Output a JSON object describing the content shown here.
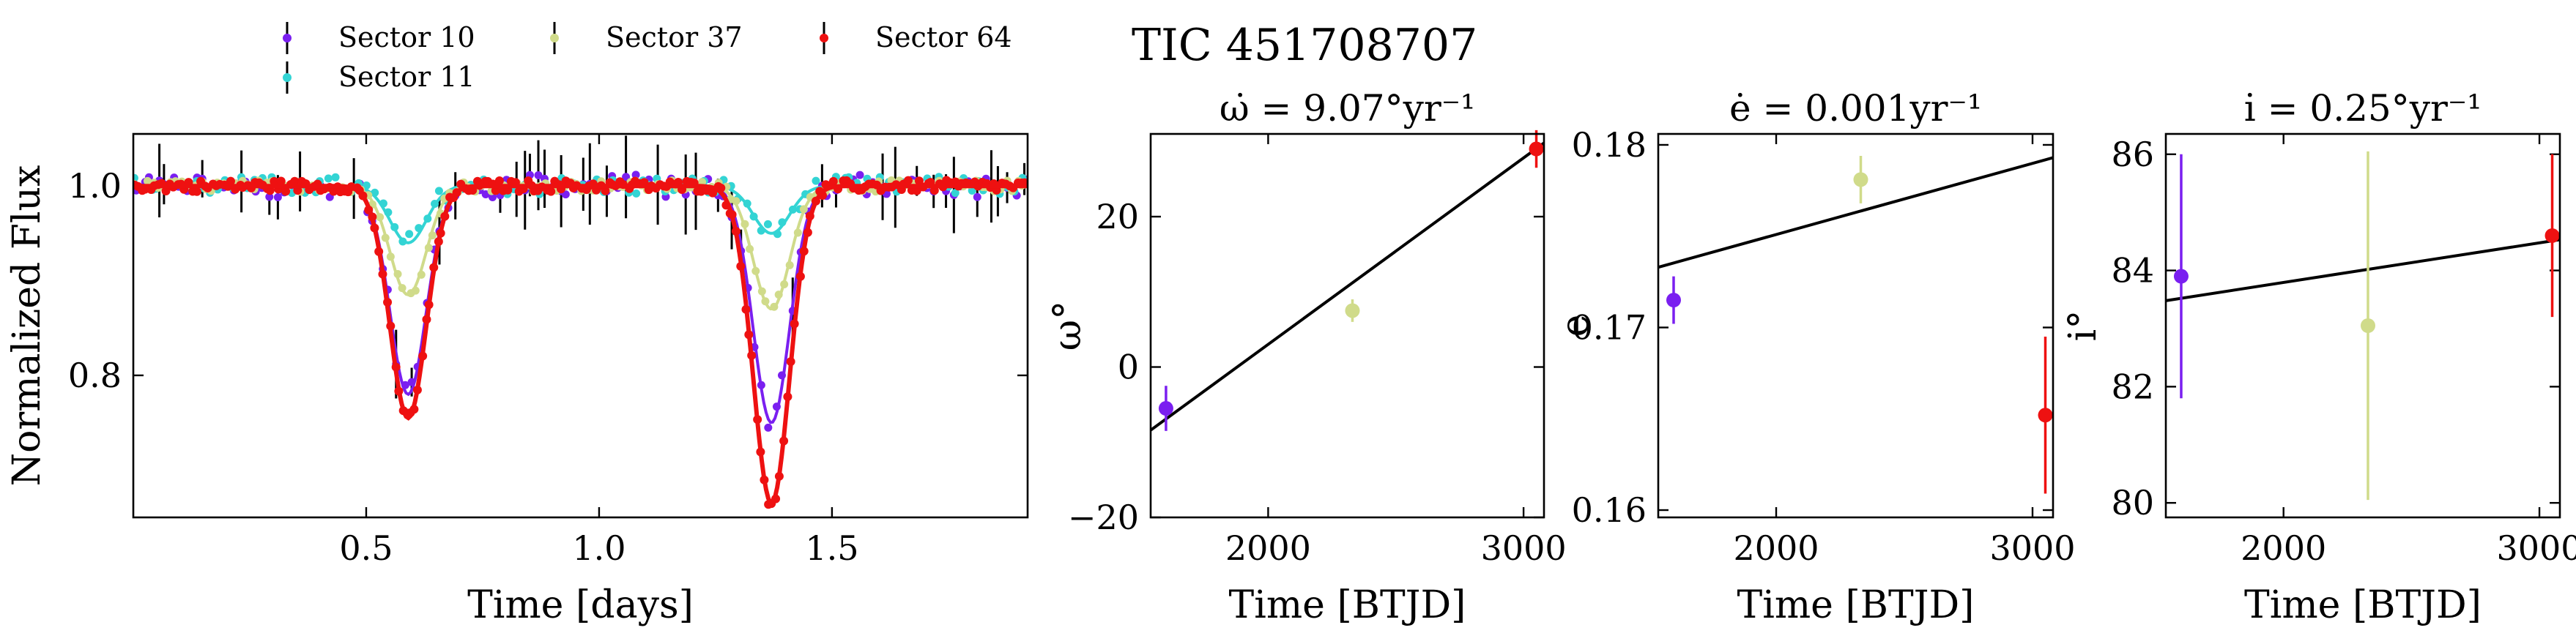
{
  "suptitle": "TIC 451708707",
  "legend": [
    {
      "label": "Sector 10",
      "color": "#7a1ff0"
    },
    {
      "label": "Sector 11",
      "color": "#33d4d4"
    },
    {
      "label": "Sector 37",
      "color": "#d0db8a"
    },
    {
      "label": "Sector 64",
      "color": "#ee1111"
    }
  ],
  "chart_data": [
    {
      "type": "scatter",
      "title": "",
      "xlabel": "Time [days]",
      "ylabel": "Normalized Flux",
      "xlim": [
        0.0,
        1.92
      ],
      "ylim": [
        0.65,
        1.055
      ],
      "xticks": [
        "0.5",
        "1.0",
        "1.5"
      ],
      "yticks": [
        "0.8",
        "1.0"
      ],
      "eclipses": {
        "primary_center": 0.59,
        "primary_half_width": 0.1,
        "secondary_center": 1.37,
        "secondary_half_width": 0.1
      },
      "series": [
        {
          "name": "Sector 10",
          "color": "#7a1ff0",
          "primary_depth": 0.22,
          "secondary_depth": 0.25,
          "scatter": 0.012
        },
        {
          "name": "Sector 11",
          "color": "#33d4d4",
          "primary_depth": 0.06,
          "secondary_depth": 0.05,
          "scatter": 0.01
        },
        {
          "name": "Sector 37",
          "color": "#d0db8a",
          "primary_depth": 0.115,
          "secondary_depth": 0.13,
          "scatter": 0.006
        },
        {
          "name": "Sector 64",
          "color": "#ee1111",
          "primary_depth": 0.245,
          "secondary_depth": 0.335,
          "scatter": 0.006
        }
      ]
    },
    {
      "type": "scatter",
      "title": "ω̇ = 9.07°yr⁻¹",
      "xlabel": "Time [BTJD]",
      "ylabel": "ω°",
      "xlim": [
        1540,
        3080
      ],
      "ylim": [
        -20,
        31
      ],
      "xticks": [
        "2000",
        "3000"
      ],
      "yticks": [
        "−20",
        "0",
        "20"
      ],
      "points": [
        {
          "x": 1600,
          "y": -5.5,
          "err": 3.0,
          "color": "#7a1ff0"
        },
        {
          "x": 2330,
          "y": 7.5,
          "err": 1.5,
          "color": "#d0db8a"
        },
        {
          "x": 3050,
          "y": 29.0,
          "err": 2.5,
          "color": "#ee1111"
        }
      ],
      "fit_line": {
        "x": [
          1540,
          3080
        ],
        "y": [
          -8.4,
          29.8
        ]
      }
    },
    {
      "type": "scatter",
      "title": "ė = 0.001yr⁻¹",
      "xlabel": "Time [BTJD]",
      "ylabel": "e",
      "xlim": [
        1540,
        3080
      ],
      "ylim": [
        0.1596,
        0.1806
      ],
      "xticks": [
        "2000",
        "3000"
      ],
      "yticks": [
        "0.16",
        "0.17",
        "0.18"
      ],
      "points": [
        {
          "x": 1600,
          "y": 0.1715,
          "err": 0.0013,
          "color": "#7a1ff0"
        },
        {
          "x": 2330,
          "y": 0.1781,
          "err": 0.0013,
          "color": "#d0db8a"
        },
        {
          "x": 3050,
          "y": 0.1652,
          "err": 0.0043,
          "color": "#ee1111"
        }
      ],
      "fit_line": {
        "x": [
          1540,
          3080
        ],
        "y": [
          0.1733,
          0.1793
        ]
      }
    },
    {
      "type": "scatter",
      "title": "i̇ = 0.25°yr⁻¹",
      "xlabel": "Time [BTJD]",
      "ylabel": "i°",
      "xlim": [
        1540,
        3080
      ],
      "ylim": [
        79.75,
        86.35
      ],
      "xticks": [
        "2000",
        "3000"
      ],
      "yticks": [
        "80",
        "82",
        "84",
        "86"
      ],
      "points": [
        {
          "x": 1600,
          "y": 83.9,
          "err": 2.1,
          "color": "#7a1ff0"
        },
        {
          "x": 2330,
          "y": 83.05,
          "err": 3.0,
          "color": "#d0db8a"
        },
        {
          "x": 3050,
          "y": 84.6,
          "err": 1.4,
          "color": "#ee1111"
        }
      ],
      "fit_line": {
        "x": [
          1540,
          3080
        ],
        "y": [
          83.48,
          84.53
        ]
      }
    }
  ]
}
